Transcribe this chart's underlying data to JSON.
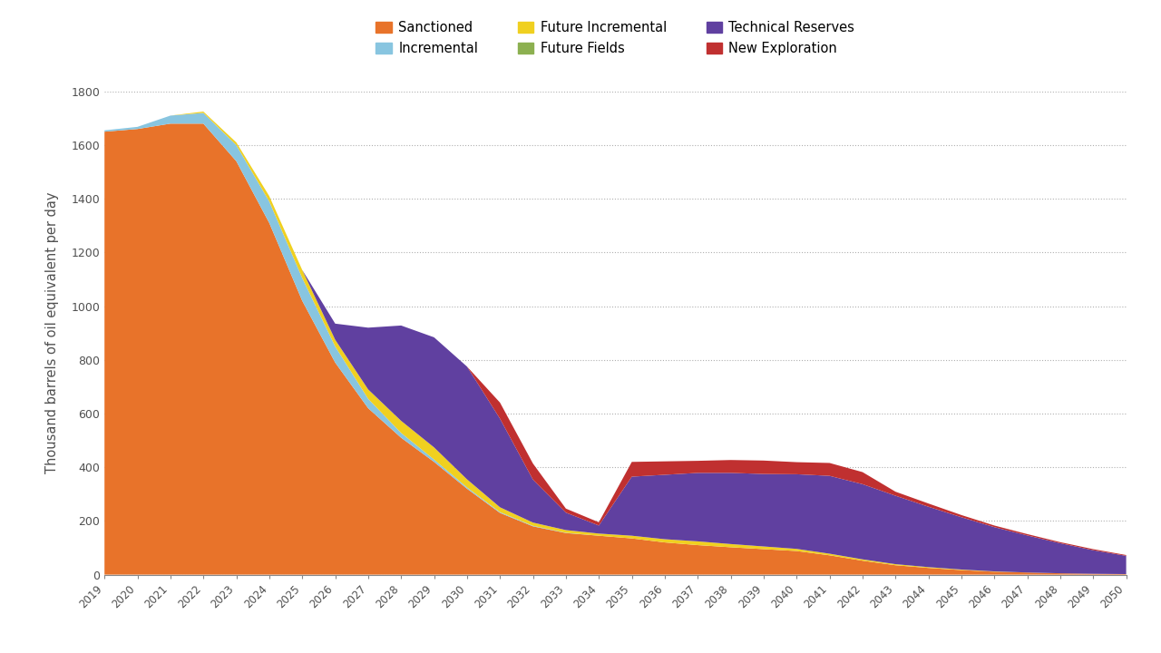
{
  "years": [
    2019,
    2020,
    2021,
    2022,
    2023,
    2024,
    2025,
    2026,
    2027,
    2028,
    2029,
    2030,
    2031,
    2032,
    2033,
    2034,
    2035,
    2036,
    2037,
    2038,
    2039,
    2040,
    2041,
    2042,
    2043,
    2044,
    2045,
    2046,
    2047,
    2048,
    2049,
    2050
  ],
  "sanctioned": [
    1650,
    1660,
    1680,
    1680,
    1540,
    1310,
    1020,
    790,
    620,
    510,
    420,
    320,
    230,
    180,
    155,
    145,
    135,
    120,
    110,
    102,
    95,
    88,
    72,
    52,
    35,
    25,
    17,
    11,
    8,
    5,
    3,
    2
  ],
  "incremental": [
    5,
    8,
    30,
    40,
    60,
    80,
    85,
    60,
    35,
    18,
    9,
    5,
    3,
    2,
    1,
    0,
    0,
    0,
    0,
    0,
    0,
    0,
    0,
    0,
    0,
    0,
    0,
    0,
    0,
    0,
    0,
    0
  ],
  "future_incremental": [
    0,
    0,
    0,
    5,
    10,
    20,
    30,
    25,
    35,
    45,
    45,
    30,
    18,
    12,
    10,
    8,
    10,
    12,
    14,
    12,
    10,
    8,
    6,
    5,
    4,
    3,
    2,
    1,
    0,
    0,
    0,
    0
  ],
  "future_fields": [
    0,
    0,
    0,
    0,
    0,
    0,
    0,
    0,
    0,
    0,
    0,
    0,
    0,
    0,
    0,
    0,
    0,
    0,
    0,
    0,
    0,
    0,
    0,
    0,
    0,
    0,
    0,
    0,
    0,
    0,
    0,
    0
  ],
  "technical_reserves": [
    0,
    0,
    0,
    0,
    0,
    0,
    0,
    60,
    230,
    355,
    410,
    420,
    330,
    160,
    65,
    30,
    220,
    240,
    255,
    265,
    270,
    278,
    290,
    280,
    255,
    225,
    195,
    165,
    138,
    112,
    88,
    68
  ],
  "new_exploration": [
    0,
    0,
    0,
    0,
    0,
    0,
    0,
    0,
    0,
    0,
    0,
    0,
    60,
    60,
    15,
    12,
    55,
    50,
    45,
    48,
    50,
    45,
    48,
    45,
    15,
    12,
    8,
    6,
    5,
    4,
    4,
    3
  ],
  "colors": {
    "sanctioned": "#E8732A",
    "incremental": "#88C5E0",
    "future_incremental": "#F0D020",
    "future_fields": "#8CB050",
    "technical_reserves": "#6040A0",
    "new_exploration": "#C03030"
  },
  "ylabel": "Thousand barrels of oil equivalent per day",
  "ylim": [
    0,
    1800
  ],
  "yticks": [
    0,
    200,
    400,
    600,
    800,
    1000,
    1200,
    1400,
    1600,
    1800
  ],
  "legend_labels": [
    "Sanctioned",
    "Incremental",
    "Future Incremental",
    "Future Fields",
    "Technical Reserves",
    "New Exploration"
  ],
  "background_color": "#ffffff"
}
